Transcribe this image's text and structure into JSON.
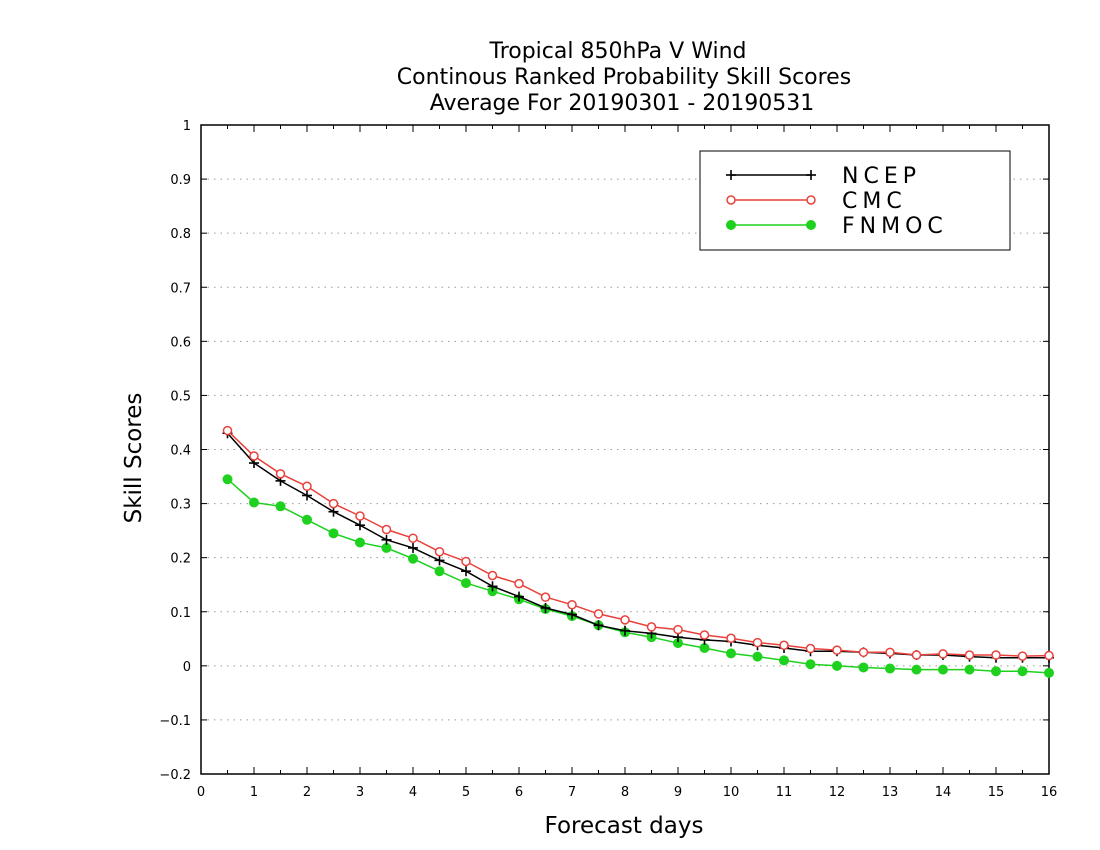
{
  "chart_data": {
    "type": "line",
    "title_lines": [
      "Tropical 850hPa V Wind",
      "Continous Ranked Probability Skill Scores",
      "Average For 20190301 - 20190531"
    ],
    "xlabel": "Forecast days",
    "ylabel": "Skill Scores",
    "xlim": [
      0,
      16
    ],
    "ylim": [
      -0.2,
      1
    ],
    "xticks": [
      "0",
      "1",
      "2",
      "3",
      "4",
      "5",
      "6",
      "7",
      "8",
      "9",
      "10",
      "11",
      "12",
      "13",
      "14",
      "15",
      "16"
    ],
    "yticks": [
      "1",
      "0.9",
      "0.8",
      "0.7",
      "0.6",
      "0.5",
      "0.4",
      "0.3",
      "0.2",
      "0.1",
      "0",
      "−0.1",
      "−0.2"
    ],
    "grid": "horizontal dotted",
    "legend_position": "top-right",
    "x": [
      0.5,
      1,
      1.5,
      2,
      2.5,
      3,
      3.5,
      4,
      4.5,
      5,
      5.5,
      6,
      6.5,
      7,
      7.5,
      8,
      8.5,
      9,
      9.5,
      10,
      10.5,
      11,
      11.5,
      12,
      12.5,
      13,
      13.5,
      14,
      14.5,
      15,
      15.5,
      16
    ],
    "series": [
      {
        "name": "NCEP",
        "color": "#000000",
        "marker": "plus",
        "values": [
          0.43,
          0.375,
          0.342,
          0.315,
          0.285,
          0.26,
          0.233,
          0.218,
          0.195,
          0.175,
          0.147,
          0.128,
          0.107,
          0.095,
          0.075,
          0.065,
          0.06,
          0.053,
          0.048,
          0.045,
          0.038,
          0.033,
          0.027,
          0.027,
          0.025,
          0.023,
          0.02,
          0.02,
          0.017,
          0.015,
          0.015,
          0.015
        ]
      },
      {
        "name": "CMC",
        "color": "#e8413b",
        "marker": "open-circle",
        "values": [
          0.435,
          0.388,
          0.355,
          0.332,
          0.3,
          0.277,
          0.252,
          0.236,
          0.211,
          0.193,
          0.167,
          0.152,
          0.127,
          0.113,
          0.096,
          0.085,
          0.072,
          0.067,
          0.057,
          0.051,
          0.043,
          0.038,
          0.032,
          0.029,
          0.025,
          0.025,
          0.02,
          0.022,
          0.02,
          0.02,
          0.018,
          0.019
        ]
      },
      {
        "name": "FNMOC",
        "color": "#1ed11e",
        "marker": "filled-circle",
        "values": [
          0.345,
          0.302,
          0.295,
          0.27,
          0.245,
          0.228,
          0.218,
          0.198,
          0.175,
          0.153,
          0.138,
          0.123,
          0.105,
          0.092,
          0.075,
          0.062,
          0.053,
          0.042,
          0.033,
          0.023,
          0.017,
          0.01,
          0.003,
          0.0,
          -0.003,
          -0.005,
          -0.007,
          -0.007,
          -0.007,
          -0.01,
          -0.01,
          -0.013
        ]
      }
    ]
  }
}
